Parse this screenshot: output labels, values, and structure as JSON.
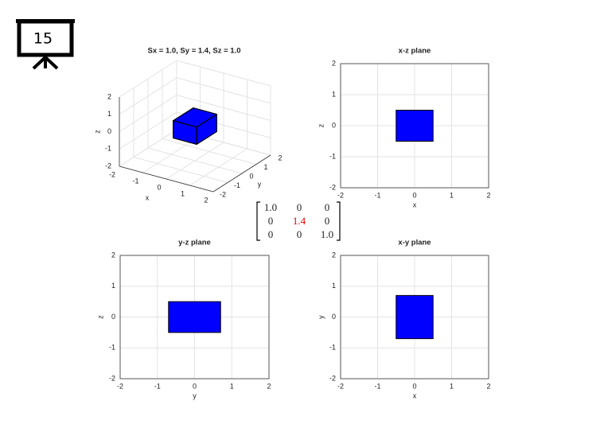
{
  "slide_number": "15",
  "matrix": {
    "rows": [
      [
        "1.0",
        "0",
        "0"
      ],
      [
        "0",
        "1.4",
        "0"
      ],
      [
        "0",
        "0",
        "1.0"
      ]
    ],
    "highlight": [
      1,
      1
    ],
    "highlight_color": "#dd0000"
  },
  "chart_data": [
    {
      "type": "box3d",
      "title": "Sx = 1.0, Sy = 1.4, Sz = 1.0",
      "xlabel": "x",
      "ylabel": "y",
      "zlabel": "z",
      "xlim": [
        -2,
        2
      ],
      "ylim": [
        -2,
        2
      ],
      "zlim": [
        -2,
        2
      ],
      "xticks": [
        -2,
        -1,
        0,
        1,
        2
      ],
      "yticks": [
        -2,
        -1,
        0,
        1,
        2
      ],
      "zticks": [
        -2,
        -1,
        0,
        1,
        2
      ],
      "xrange": [
        -0.5,
        0.5
      ],
      "yrange": [
        -0.7,
        0.7
      ],
      "zrange": [
        -0.5,
        0.5
      ],
      "color": "#0000ff",
      "grid": true
    },
    {
      "type": "rectangle",
      "title": "x-z plane",
      "xlabel": "x",
      "ylabel": "z",
      "xlim": [
        -2,
        2
      ],
      "ylim": [
        -2,
        2
      ],
      "xticks": [
        -2,
        -1,
        0,
        1,
        2
      ],
      "yticks": [
        -2,
        -1,
        0,
        1,
        2
      ],
      "xrange": [
        -0.5,
        0.5
      ],
      "yrange": [
        -0.5,
        0.5
      ],
      "color": "#0000ff",
      "grid": true
    },
    {
      "type": "rectangle",
      "title": "y-z plane",
      "xlabel": "y",
      "ylabel": "z",
      "xlim": [
        -2,
        2
      ],
      "ylim": [
        -2,
        2
      ],
      "xticks": [
        -2,
        -1,
        0,
        1,
        2
      ],
      "yticks": [
        -2,
        -1,
        0,
        1,
        2
      ],
      "xrange": [
        -0.7,
        0.7
      ],
      "yrange": [
        -0.5,
        0.5
      ],
      "color": "#0000ff",
      "grid": true
    },
    {
      "type": "rectangle",
      "title": "x-y plane",
      "xlabel": "x",
      "ylabel": "y",
      "xlim": [
        -2,
        2
      ],
      "ylim": [
        -2,
        2
      ],
      "xticks": [
        -2,
        -1,
        0,
        1,
        2
      ],
      "yticks": [
        -2,
        -1,
        0,
        1,
        2
      ],
      "xrange": [
        -0.5,
        0.5
      ],
      "yrange": [
        -0.7,
        0.7
      ],
      "color": "#0000ff",
      "grid": true
    }
  ]
}
